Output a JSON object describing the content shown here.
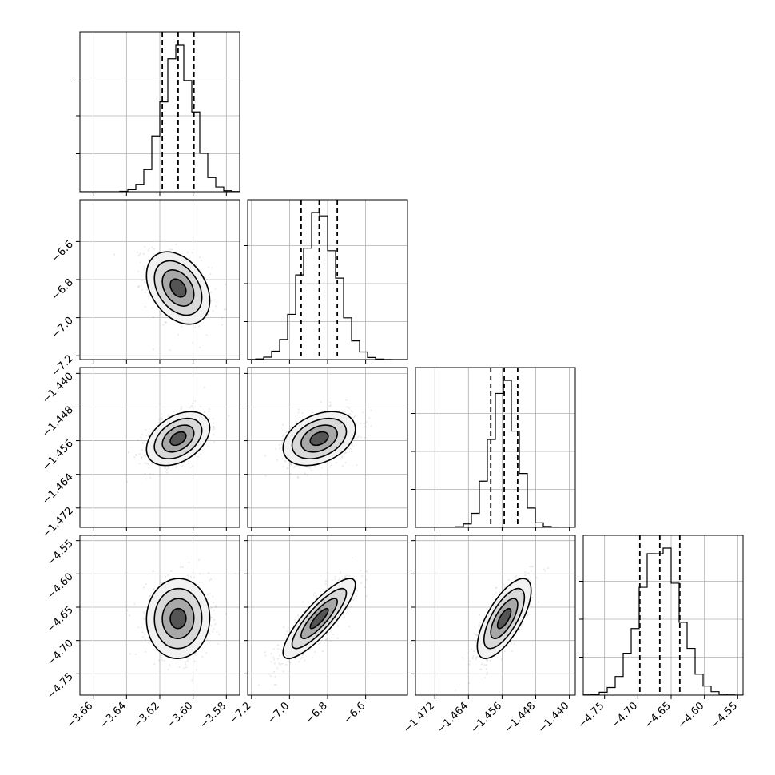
{
  "chart_data": {
    "type": "corner",
    "grid": true,
    "parameters": [
      {
        "id": "p0",
        "mean": -3.609,
        "sd": 0.0095,
        "range": [
          -3.668,
          -3.572
        ],
        "quantiles": [
          -3.6185,
          -3.609,
          -3.5995
        ],
        "ticks": [
          -3.66,
          -3.64,
          -3.62,
          -3.6,
          -3.58
        ],
        "tick_labels": [
          "−3.66",
          "−3.64",
          "−3.62",
          "−3.60",
          "−3.58"
        ]
      },
      {
        "id": "p1",
        "mean": -6.844,
        "sd": 0.095,
        "range": [
          -7.22,
          -6.38
        ],
        "quantiles": [
          -6.939,
          -6.844,
          -6.749
        ],
        "ticks": [
          -7.2,
          -7.0,
          -6.8,
          -6.6
        ],
        "tick_labels": [
          "−7.2",
          "−7.0",
          "−6.8",
          "−6.6"
        ]
      },
      {
        "id": "p2",
        "mean": -1.4555,
        "sd": 0.0032,
        "range": [
          -1.4766,
          -1.4386
        ],
        "quantiles": [
          -1.4587,
          -1.4555,
          -1.4523
        ],
        "ticks": [
          -1.472,
          -1.464,
          -1.456,
          -1.448,
          -1.44
        ],
        "tick_labels": [
          "−1.472",
          "−1.464",
          "−1.456",
          "−1.448",
          "−1.440"
        ]
      },
      {
        "id": "p3",
        "mean": -4.667,
        "sd": 0.03,
        "range": [
          -4.782,
          -4.542
        ],
        "quantiles": [
          -4.697,
          -4.667,
          -4.637
        ],
        "ticks": [
          -4.75,
          -4.7,
          -4.65,
          -4.6,
          -4.55
        ],
        "tick_labels": [
          "−4.75",
          "−4.70",
          "−4.65",
          "−4.60",
          "−4.55"
        ]
      }
    ],
    "correlations": [
      [
        1.0,
        -0.35,
        0.4,
        0.02
      ],
      [
        -0.35,
        1.0,
        0.35,
        0.85
      ],
      [
        0.4,
        0.35,
        1.0,
        0.7
      ],
      [
        0.02,
        0.85,
        0.7,
        1.0
      ]
    ],
    "contour_levels_sigma": [
      0.5,
      1.0,
      1.5,
      2.0
    ],
    "histogram_bins": 20
  }
}
